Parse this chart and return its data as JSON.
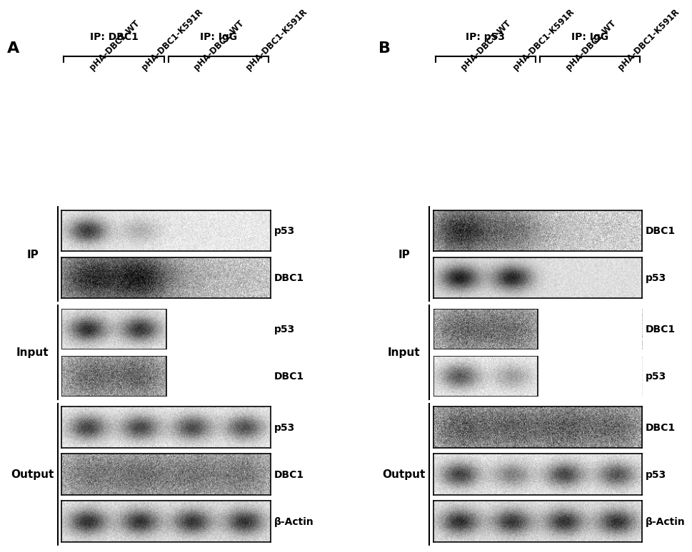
{
  "figure_width": 10.2,
  "figure_height": 7.29,
  "bg_color": "#ffffff",
  "panel_A": {
    "label": "A",
    "ip_label": "IP: DBC1",
    "igg_label": "IP: IgG",
    "col_labels": [
      "pHA-DBC1-WT",
      "pHA-DBC1-K591R",
      "pHA-DBC1-WT",
      "pHA-DBC1-K591R"
    ],
    "blot_labels_IP": [
      "p53",
      "DBC1"
    ],
    "blot_labels_Input": [
      "p53",
      "DBC1"
    ],
    "blot_labels_Output": [
      "p53",
      "DBC1",
      "β-Actin"
    ]
  },
  "panel_B": {
    "label": "B",
    "ip_label": "IP: p53",
    "igg_label": "IP: IgG",
    "col_labels": [
      "pHA-DBC1-WT",
      "pHA-DBC1-K591R",
      "pHA-DBC1-WT",
      "pHA-DBC1-K591R"
    ],
    "blot_labels_IP": [
      "DBC1",
      "p53"
    ],
    "blot_labels_Input": [
      "DBC1",
      "p53"
    ],
    "blot_labels_Output": [
      "DBC1",
      "p53",
      "β-Actin"
    ]
  }
}
